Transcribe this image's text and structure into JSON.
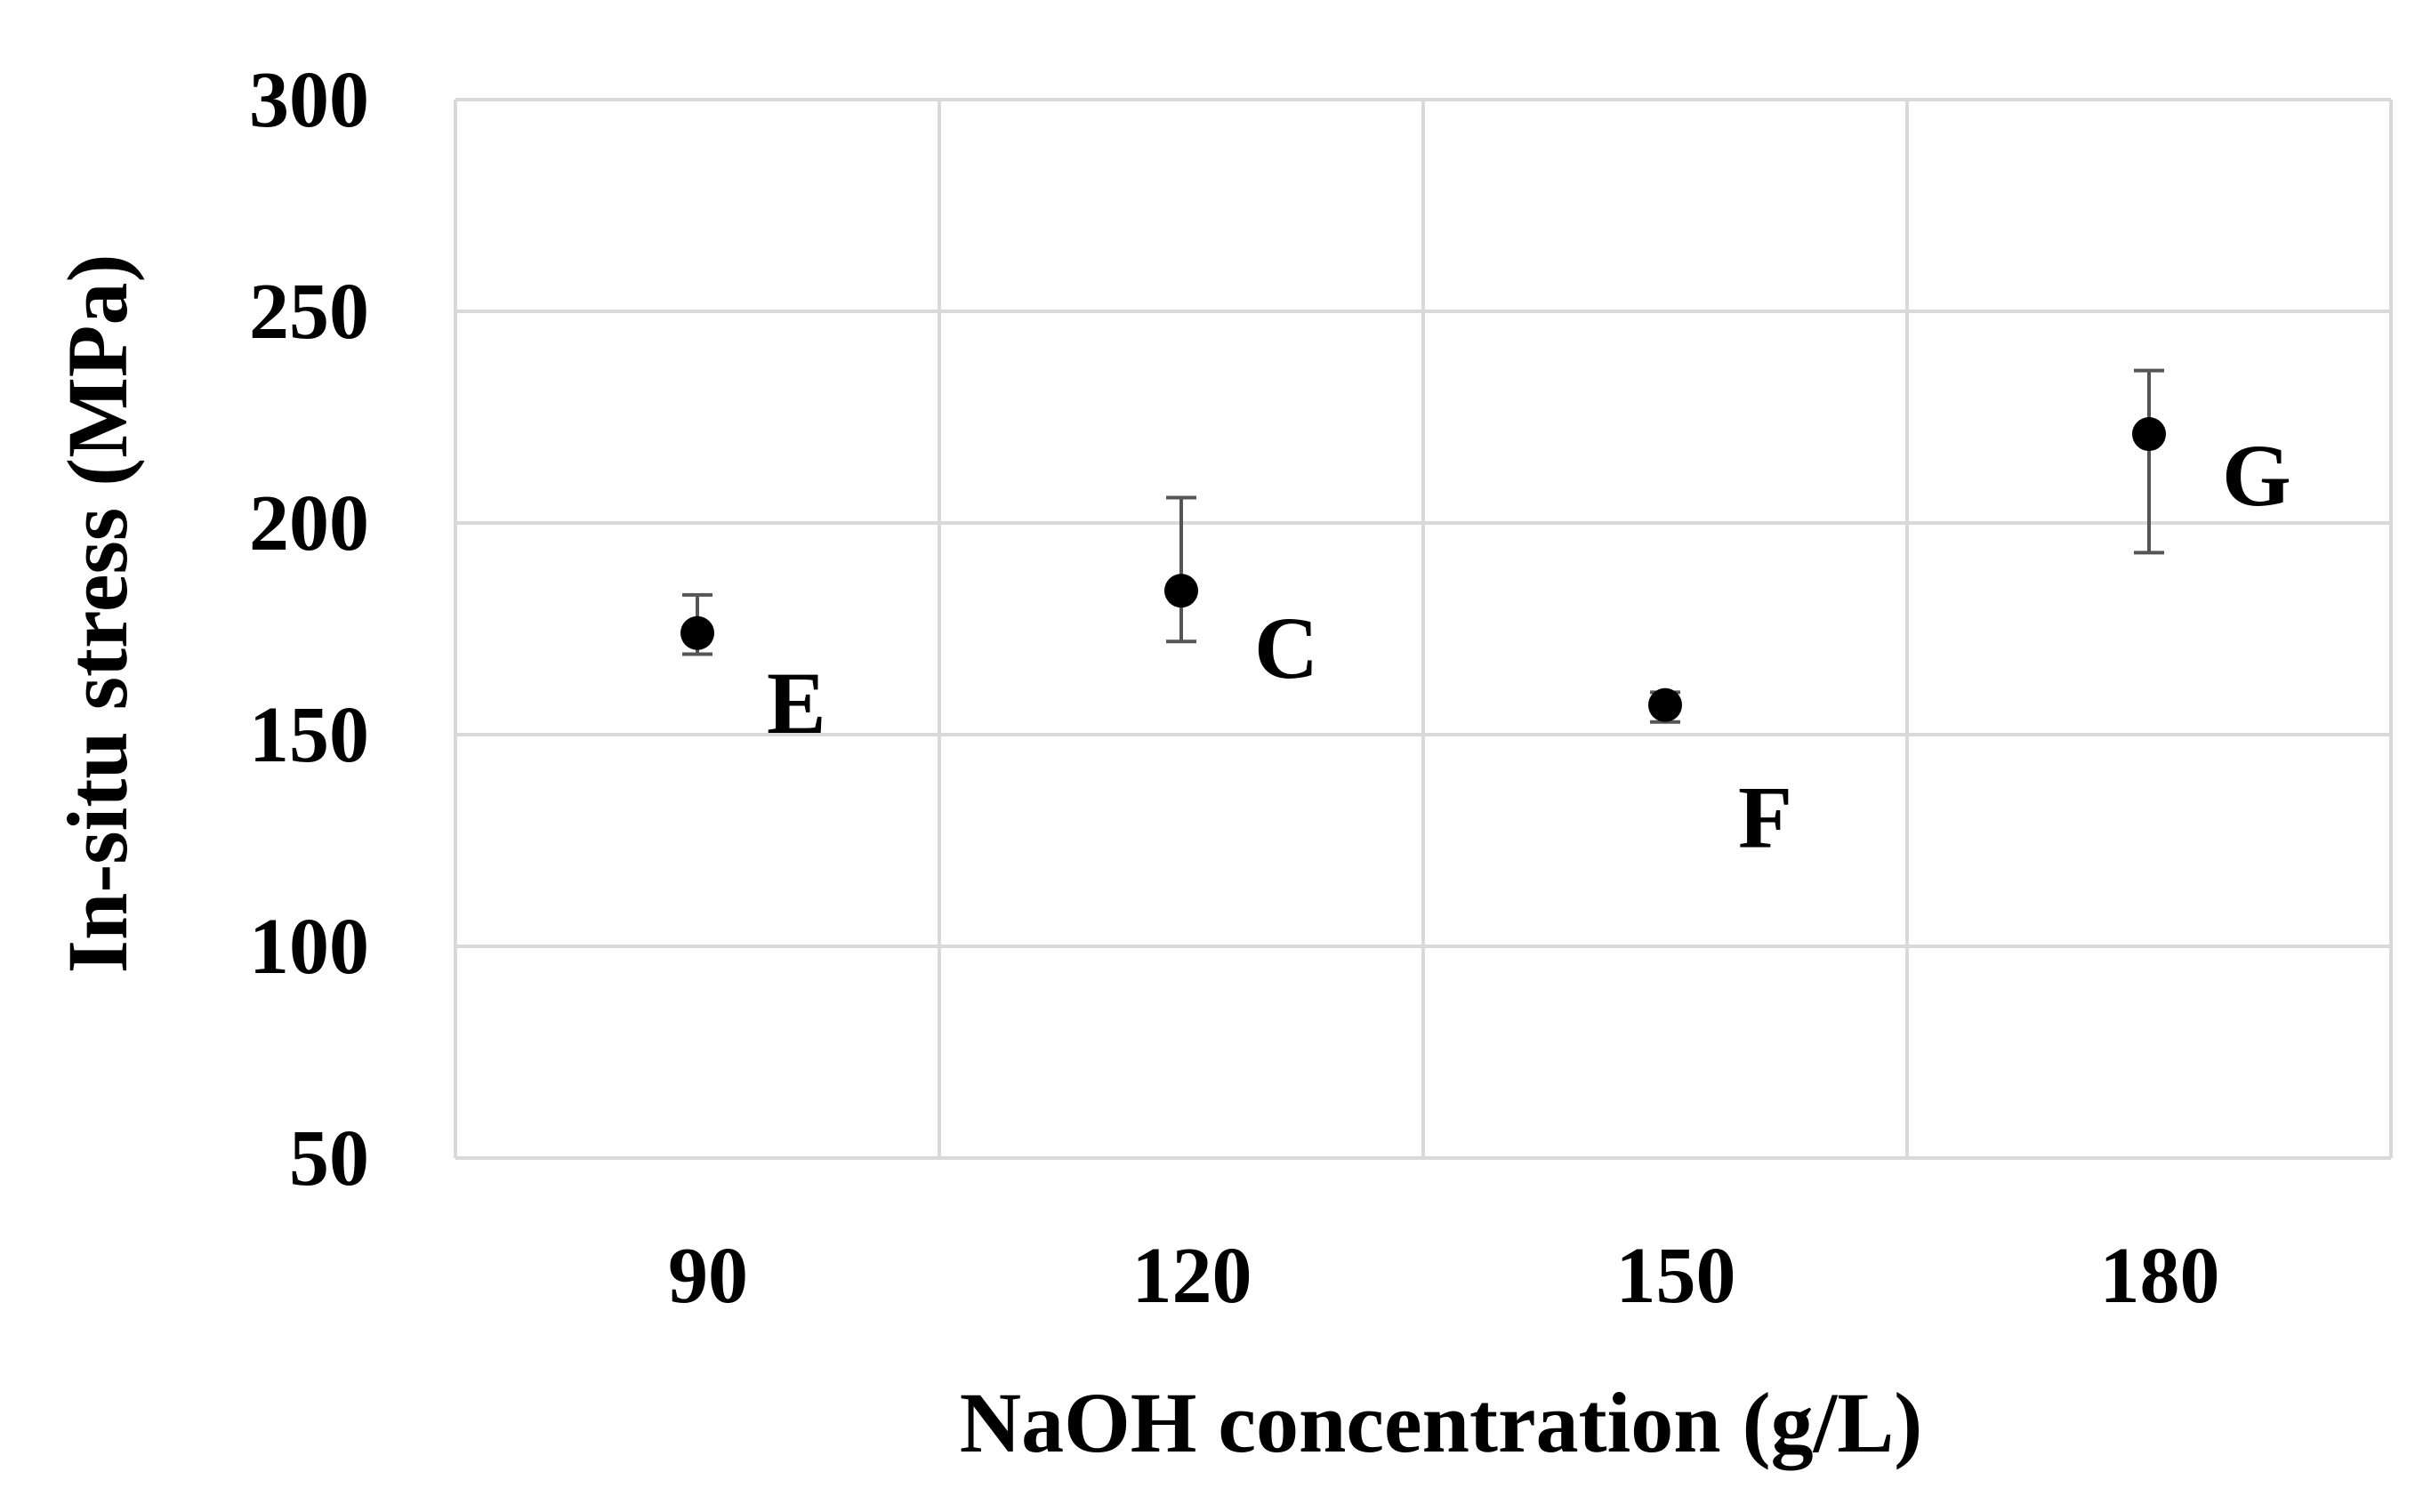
{
  "chart_data": {
    "type": "scatter",
    "title": "",
    "xlabel": "NaOH concentration (g/L)",
    "ylabel": "In-situ stress (MPa)",
    "categories": [
      "90",
      "120",
      "150",
      "180"
    ],
    "ylim": [
      50,
      300
    ],
    "yticks": [
      50,
      100,
      150,
      200,
      250,
      300
    ],
    "grid": true,
    "legend": "none",
    "series": [
      {
        "name": "In-situ stress",
        "points": [
          {
            "category": "90",
            "label": "E",
            "value": 174,
            "err_low": 169,
            "err_high": 183
          },
          {
            "category": "120",
            "label": "C",
            "value": 184,
            "err_low": 172,
            "err_high": 206
          },
          {
            "category": "150",
            "label": "F",
            "value": 157,
            "err_low": 153,
            "err_high": 160
          },
          {
            "category": "180",
            "label": "G",
            "value": 221,
            "err_low": 193,
            "err_high": 236
          }
        ]
      }
    ],
    "colors": {
      "marker": "#000000",
      "errorbar": "#555555",
      "grid": "#d9d9d9",
      "text": "#000000"
    }
  }
}
